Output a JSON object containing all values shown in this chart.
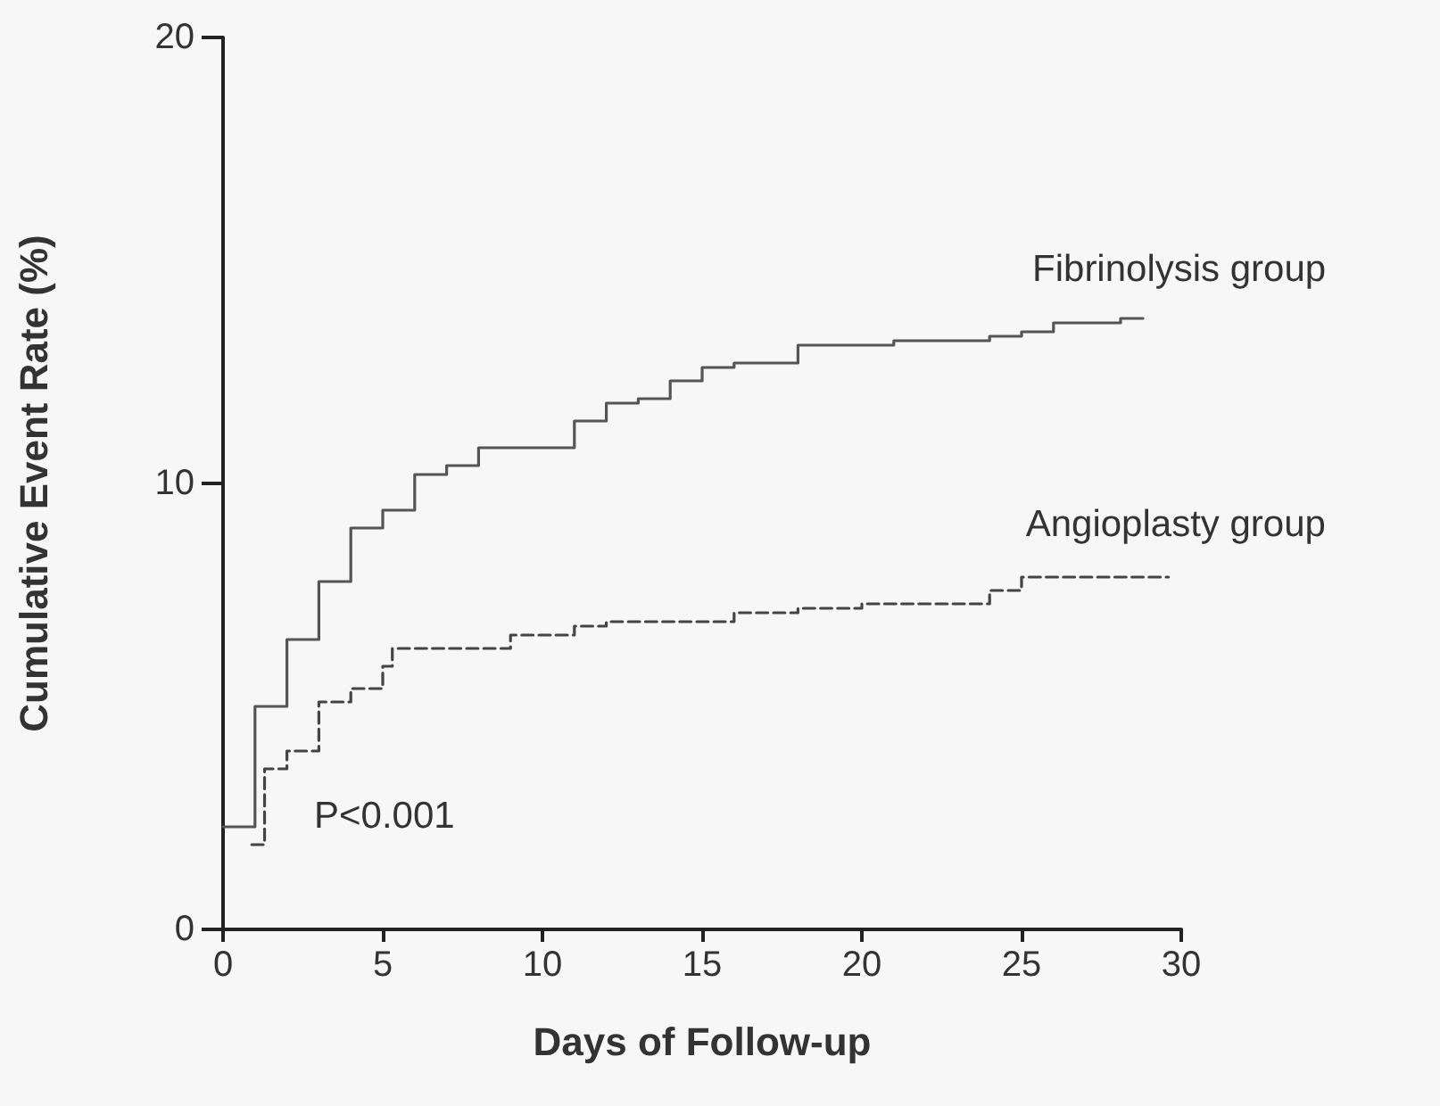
{
  "chart_data": {
    "type": "step",
    "xlabel": "Days of Follow-up",
    "ylabel": "Cumulative Event Rate (%)",
    "xlim": [
      0,
      30
    ],
    "xticks": [
      0,
      5,
      10,
      15,
      20,
      25,
      30
    ],
    "ylim": [
      0,
      20
    ],
    "yticks": [
      0,
      10,
      20
    ],
    "grid": false,
    "legend": false,
    "marker": "none",
    "annotations": [
      "P<0.001"
    ],
    "series": [
      {
        "name": "Fibrinolysis group",
        "color": "#555555",
        "line_style": "solid",
        "x": [
          0,
          1,
          2,
          3,
          4,
          5,
          6,
          7,
          8,
          11,
          12,
          13,
          14,
          15,
          16,
          18,
          21,
          24,
          25,
          26,
          28.1,
          28.8
        ],
        "values": [
          2.3,
          5.0,
          6.5,
          7.8,
          9.0,
          9.4,
          10.2,
          10.4,
          10.8,
          11.4,
          11.8,
          11.9,
          12.3,
          12.6,
          12.7,
          13.1,
          13.2,
          13.3,
          13.4,
          13.6,
          13.7,
          13.7
        ]
      },
      {
        "name": "Angioplasty group",
        "color": "#444444",
        "line_style": "dashed",
        "x": [
          0.9,
          1.3,
          2,
          3,
          4,
          5,
          5.3,
          9,
          11,
          12,
          16,
          18,
          20,
          24,
          25,
          29.6
        ],
        "values": [
          1.9,
          3.6,
          4.0,
          5.1,
          5.4,
          5.9,
          6.3,
          6.6,
          6.8,
          6.9,
          7.1,
          7.2,
          7.3,
          7.6,
          7.9,
          7.9
        ]
      }
    ]
  }
}
